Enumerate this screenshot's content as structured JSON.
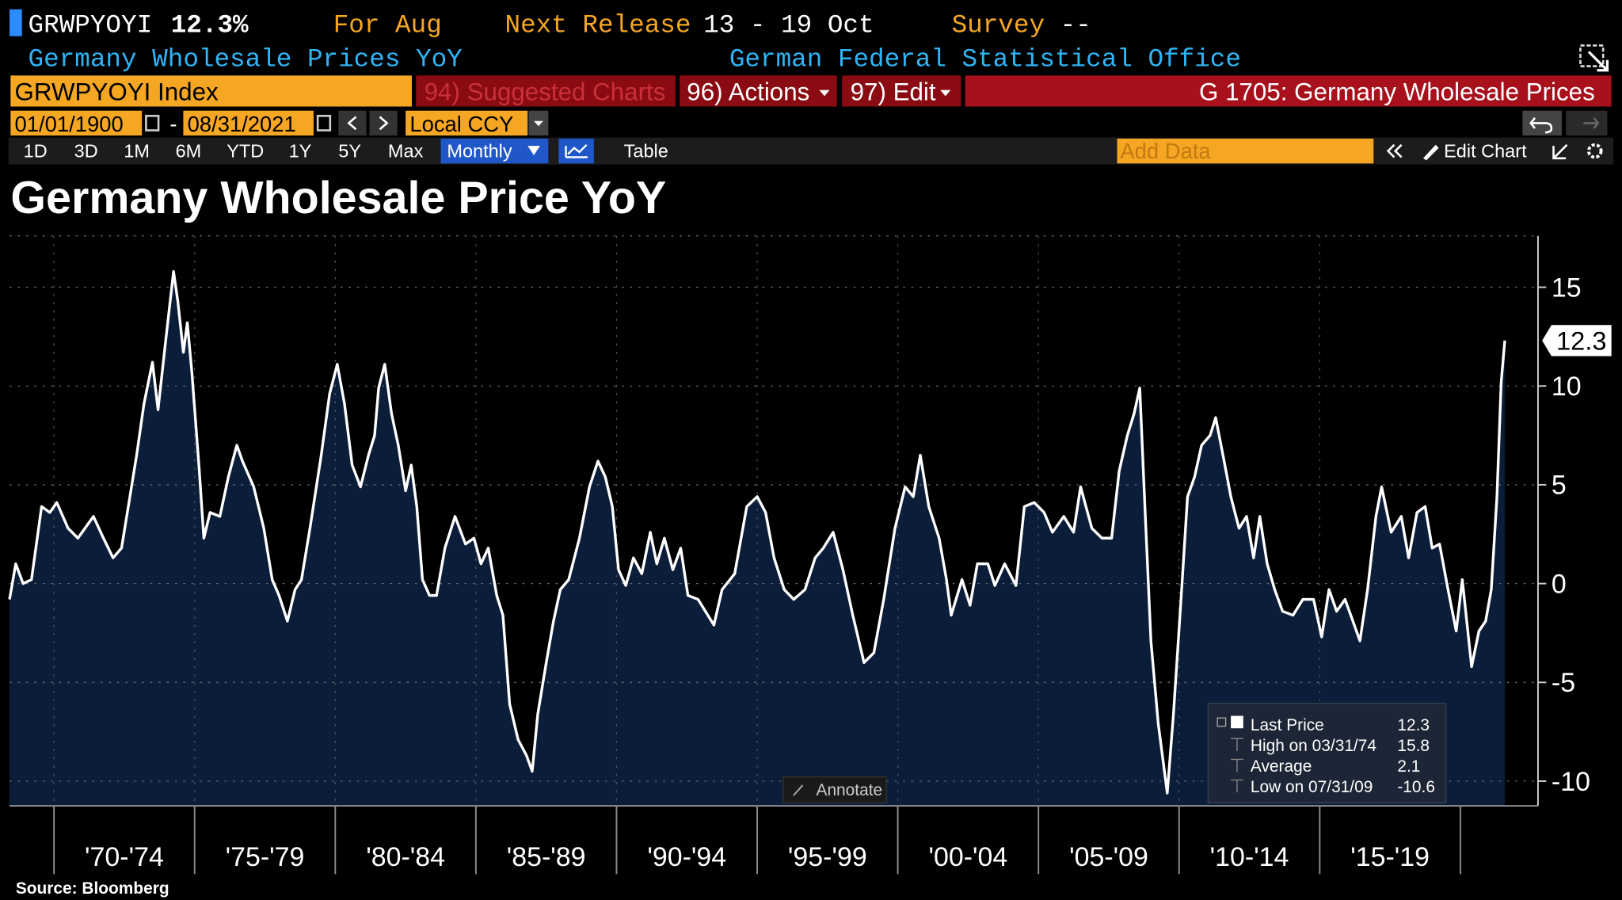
{
  "header": {
    "ticker": "GRWPYOYI",
    "last": "12.3%",
    "for_label": "For Aug",
    "next_release_label": "Next Release",
    "next_release": "13 - 19 Oct",
    "survey_label": "Survey",
    "survey": "--",
    "name": "Germany Wholesale Prices YoY",
    "source_org": "German Federal Statistical Office"
  },
  "toolbar": {
    "security": "GRWPYOYI Index",
    "suggested": "94) Suggested Charts",
    "actions": "96) Actions",
    "edit": "97) Edit",
    "chart_name": "G 1705: Germany Wholesale Prices",
    "start_date": "01/01/1900",
    "date_sep": "-",
    "end_date": "08/31/2021",
    "currency": "Local CCY",
    "periods": [
      "1D",
      "3D",
      "1M",
      "6M",
      "YTD",
      "1Y",
      "5Y",
      "Max"
    ],
    "frequency": "Monthly",
    "table": "Table",
    "add_data": "Add Data",
    "edit_chart": "Edit Chart",
    "annotate": "Annotate"
  },
  "chart_data": {
    "type": "line",
    "title": "Germany Wholesale Price YoY",
    "source": "Source: Bloomberg",
    "x": [
      1968.42,
      1968.64,
      1968.9,
      1969.2,
      1969.56,
      1969.85,
      1970.1,
      1970.5,
      1970.85,
      1971.4,
      1971.76,
      1972.1,
      1972.4,
      1972.7,
      1972.94,
      1973.2,
      1973.5,
      1973.7,
      1973.97,
      1974.25,
      1974.4,
      1974.6,
      1974.74,
      1974.9,
      1975.15,
      1975.33,
      1975.55,
      1975.9,
      1976.2,
      1976.5,
      1976.7,
      1977.1,
      1977.46,
      1977.76,
      1978.0,
      1978.3,
      1978.57,
      1978.8,
      1979.1,
      1979.5,
      1979.8,
      1980.07,
      1980.33,
      1980.6,
      1980.9,
      1981.18,
      1981.4,
      1981.54,
      1981.76,
      1982.0,
      1982.24,
      1982.5,
      1982.7,
      1982.9,
      1983.1,
      1983.35,
      1983.6,
      1983.9,
      1984.26,
      1984.63,
      1984.93,
      1985.18,
      1985.44,
      1985.74,
      1985.96,
      1986.2,
      1986.5,
      1986.8,
      1987.0,
      1987.2,
      1987.5,
      1987.76,
      1988.0,
      1988.3,
      1988.68,
      1989.04,
      1989.34,
      1989.6,
      1989.85,
      1990.07,
      1990.33,
      1990.6,
      1990.9,
      1991.2,
      1991.43,
      1991.7,
      1992.0,
      1992.28,
      1992.54,
      1992.9,
      1993.16,
      1993.46,
      1993.75,
      1994.2,
      1994.63,
      1995.0,
      1995.3,
      1995.6,
      1995.96,
      1996.3,
      1996.7,
      1997.06,
      1997.35,
      1997.7,
      1998.05,
      1998.4,
      1998.8,
      1999.15,
      1999.5,
      1999.9,
      2000.26,
      2000.55,
      2000.8,
      2001.1,
      2001.47,
      2001.73,
      2001.9,
      2002.28,
      2002.57,
      2002.83,
      2003.2,
      2003.45,
      2003.8,
      2004.2,
      2004.5,
      2004.85,
      2005.2,
      2005.5,
      2005.9,
      2006.25,
      2006.5,
      2006.9,
      2007.26,
      2007.6,
      2007.87,
      2008.16,
      2008.4,
      2008.6,
      2008.8,
      2009.0,
      2009.26,
      2009.58,
      2009.8,
      2010.07,
      2010.3,
      2010.55,
      2010.8,
      2011.1,
      2011.3,
      2011.56,
      2011.84,
      2012.13,
      2012.4,
      2012.65,
      2012.87,
      2013.13,
      2013.4,
      2013.68,
      2014.05,
      2014.4,
      2014.78,
      2015.07,
      2015.33,
      2015.6,
      2015.9,
      2016.18,
      2016.43,
      2016.7,
      2017.0,
      2017.2,
      2017.54,
      2017.9,
      2018.16,
      2018.46,
      2018.75,
      2019.0,
      2019.26,
      2019.56,
      2019.85,
      2020.07,
      2020.4,
      2020.66,
      2020.9,
      2021.1,
      2021.3,
      2021.45,
      2021.58
    ],
    "series": [
      {
        "name": "Last Price",
        "color": "#ffffff",
        "values": [
          -0.8,
          1.0,
          0,
          0.2,
          3.9,
          3.6,
          4.1,
          2.8,
          2.3,
          3.4,
          2.3,
          1.3,
          1.8,
          4.4,
          6.5,
          9.1,
          11.2,
          8.8,
          12.3,
          15.8,
          14.3,
          11.7,
          13.2,
          10.7,
          6.0,
          2.3,
          3.6,
          3.4,
          5.4,
          7.0,
          6.2,
          4.9,
          2.8,
          0.2,
          -0.6,
          -1.9,
          -0.3,
          0.2,
          2.8,
          6.5,
          9.6,
          11.1,
          9.1,
          6.0,
          4.9,
          6.5,
          7.5,
          9.9,
          11.1,
          8.6,
          7.0,
          4.7,
          6.0,
          3.9,
          0.2,
          -0.6,
          -0.6,
          1.8,
          3.4,
          2.0,
          2.3,
          1.0,
          1.8,
          -0.6,
          -1.6,
          -6.1,
          -7.9,
          -8.7,
          -9.5,
          -6.6,
          -4.0,
          -1.9,
          -0.3,
          0.2,
          2.3,
          4.9,
          6.2,
          5.4,
          3.9,
          0.7,
          -0.1,
          1.3,
          0.5,
          2.6,
          1.0,
          2.3,
          0.7,
          1.8,
          -0.6,
          -0.8,
          -1.4,
          -2.1,
          -0.3,
          0.5,
          3.9,
          4.4,
          3.6,
          1.3,
          -0.3,
          -0.8,
          -0.3,
          1.3,
          1.8,
          2.6,
          0.7,
          -1.6,
          -4.0,
          -3.5,
          -0.8,
          2.8,
          4.9,
          4.4,
          6.5,
          3.9,
          2.3,
          0.2,
          -1.6,
          0.2,
          -1.1,
          1.0,
          1.0,
          -0.1,
          1.0,
          -0.1,
          3.9,
          4.1,
          3.6,
          2.6,
          3.4,
          2.6,
          4.9,
          2.8,
          2.3,
          2.3,
          5.7,
          7.5,
          8.6,
          9.9,
          3.4,
          -2.9,
          -7.1,
          -10.6,
          -6.6,
          -0.8,
          4.4,
          5.4,
          7.0,
          7.5,
          8.4,
          6.5,
          4.4,
          2.8,
          3.4,
          1.3,
          3.4,
          1.0,
          -0.3,
          -1.4,
          -1.6,
          -0.8,
          -0.8,
          -2.7,
          -0.3,
          -1.4,
          -0.8,
          -1.9,
          -2.9,
          -0.3,
          3.4,
          4.9,
          2.6,
          3.4,
          1.3,
          3.6,
          3.9,
          1.8,
          2.0,
          -0.3,
          -2.4,
          0.2,
          -4.2,
          -2.4,
          -1.9,
          -0.3,
          4.4,
          10.2,
          12.3
        ]
      }
    ],
    "fill_color": "#0c1d3a",
    "stats": [
      {
        "label": "High on 03/31/74",
        "value": 15.8
      },
      {
        "label": "Average",
        "value": 2.1
      },
      {
        "label": "Low on 07/31/09",
        "value": -10.6
      }
    ],
    "xlim": [
      1968.42,
      2022.76
    ],
    "ylim": [
      -11.25,
      17.6
    ],
    "yticks": [
      -10,
      -5,
      0,
      5,
      10,
      15
    ],
    "grid": true,
    "xbands": [
      {
        "label": "'70-'74",
        "from": 1970,
        "to": 1975
      },
      {
        "label": "'75-'79",
        "from": 1975,
        "to": 1980
      },
      {
        "label": "'80-'84",
        "from": 1980,
        "to": 1985
      },
      {
        "label": "'85-'89",
        "from": 1985,
        "to": 1990
      },
      {
        "label": "'90-'94",
        "from": 1990,
        "to": 1995
      },
      {
        "label": "'95-'99",
        "from": 1995,
        "to": 2000
      },
      {
        "label": "'00-'04",
        "from": 2000,
        "to": 2005
      },
      {
        "label": "'05-'09",
        "from": 2005,
        "to": 2010
      },
      {
        "label": "'10-'14",
        "from": 2010,
        "to": 2015
      },
      {
        "label": "'15-'19",
        "from": 2015,
        "to": 2020
      }
    ]
  }
}
